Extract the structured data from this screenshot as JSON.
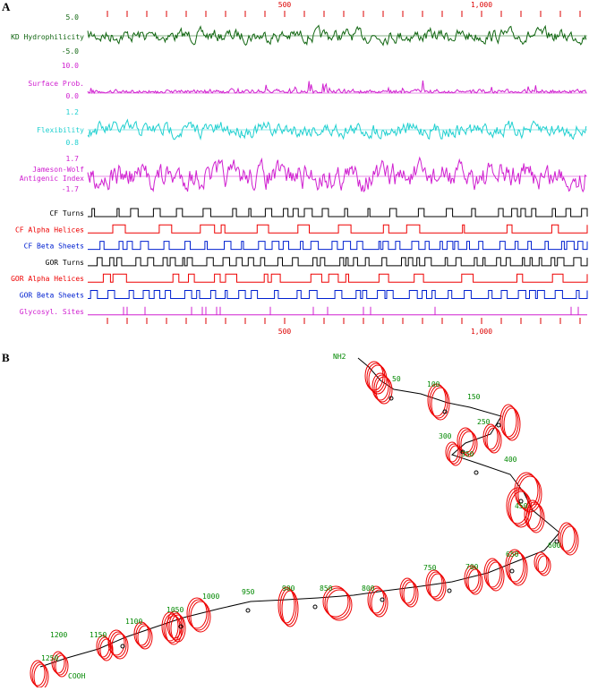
{
  "panel_a": {
    "label": "A",
    "tracks": [
      {
        "name": "KD Hydrophilicity",
        "max": "5.0",
        "min": "-5.0"
      },
      {
        "name": "Surface Prob.",
        "max": "10.0",
        "min": "0.0"
      },
      {
        "name": "Flexibility",
        "max": "1.2",
        "min": "0.8"
      },
      {
        "name": "Jameson-Wolf",
        "name2": "Antigenic Index",
        "max": "1.7",
        "min": "-1.7"
      }
    ],
    "structure_tracks": [
      "CF Turns",
      "CF Alpha Helices",
      "CF Beta Sheets",
      "GOR Turns",
      "GOR Alpha Helices",
      "GOR Beta Sheets",
      "Glycosyl. Sites"
    ],
    "axis_labels": [
      "500",
      "1,000"
    ]
  },
  "panel_b": {
    "label": "B",
    "n_term": "NH2",
    "c_term": "COOH",
    "residue_labels": [
      "50",
      "100",
      "150",
      "250",
      "300",
      "350",
      "400",
      "450",
      "600",
      "650",
      "700",
      "750",
      "800",
      "850",
      "900",
      "950",
      "1000",
      "1050",
      "1100",
      "1150",
      "1200",
      "1250"
    ]
  }
}
